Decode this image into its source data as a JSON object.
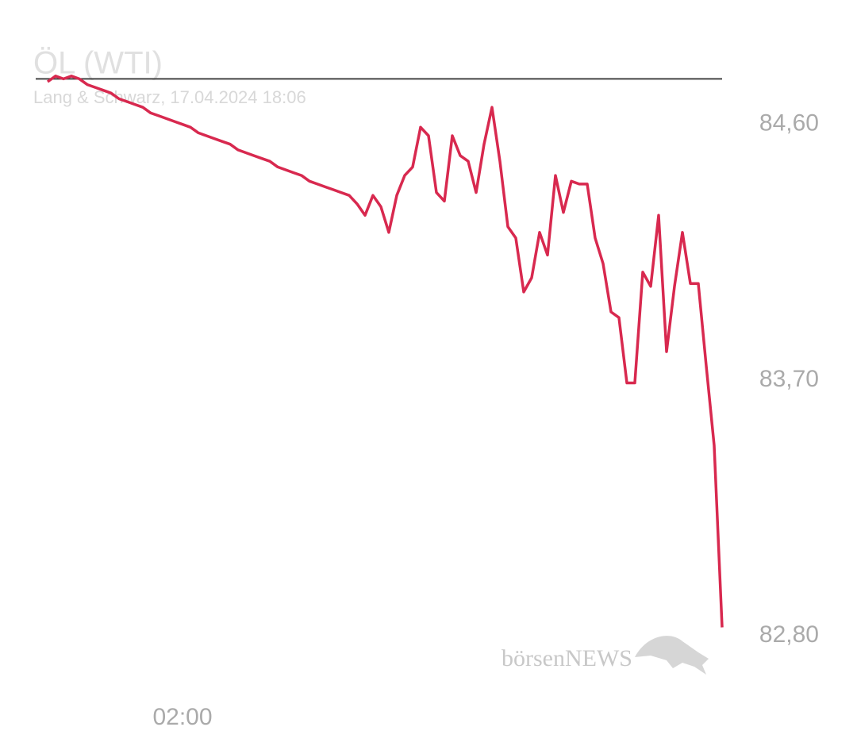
{
  "chart_data": {
    "type": "line",
    "title": "ÖL (WTI)",
    "subtitle": "Lang & Schwarz, 17.04.2024 18:06",
    "watermark": "börsenNEWS",
    "categories": [
      null,
      null,
      null,
      null,
      null,
      null,
      null,
      null,
      null,
      null,
      null,
      null,
      null,
      null,
      null,
      null,
      null,
      "02:00",
      null,
      null,
      null,
      null,
      null,
      null,
      null,
      null,
      null,
      null,
      null,
      null,
      null,
      null,
      null,
      null,
      null,
      null,
      null,
      null,
      null,
      null,
      null,
      null,
      null,
      null,
      null,
      null,
      null,
      null,
      null,
      null,
      null,
      null,
      null,
      null,
      null,
      null,
      null,
      null,
      null,
      null,
      null,
      null,
      null,
      null,
      null,
      null,
      null,
      null,
      null,
      null,
      null,
      null,
      null,
      null,
      null,
      null,
      null,
      null,
      null,
      null,
      null,
      null,
      null,
      null,
      null,
      null
    ],
    "values": [
      84.75,
      84.77,
      84.76,
      84.77,
      84.76,
      84.74,
      84.73,
      84.72,
      84.71,
      84.69,
      84.68,
      84.67,
      84.66,
      84.64,
      84.63,
      84.62,
      84.61,
      84.6,
      84.59,
      84.57,
      84.56,
      84.55,
      84.54,
      84.53,
      84.51,
      84.5,
      84.49,
      84.48,
      84.47,
      84.45,
      84.44,
      84.43,
      84.42,
      84.4,
      84.39,
      84.38,
      84.37,
      84.36,
      84.35,
      84.32,
      84.28,
      84.35,
      84.31,
      84.22,
      84.35,
      84.42,
      84.45,
      84.59,
      84.56,
      84.36,
      84.33,
      84.56,
      84.49,
      84.47,
      84.36,
      84.53,
      84.66,
      84.47,
      84.24,
      84.2,
      84.01,
      84.06,
      84.22,
      84.14,
      84.42,
      84.29,
      84.4,
      84.39,
      84.39,
      84.2,
      84.11,
      83.94,
      83.92,
      83.69,
      83.69,
      84.08,
      84.03,
      84.28,
      83.8,
      84.03,
      84.22,
      84.04,
      84.04,
      83.75,
      83.47,
      82.83
    ],
    "color": "#d8294f",
    "reference_line": 84.76,
    "reference_color": "#444444",
    "ylim": [
      82.58,
      84.87
    ],
    "yticks": [
      {
        "value": 82.8,
        "label": "82,80"
      },
      {
        "value": 83.7,
        "label": "83,70"
      },
      {
        "value": 84.6,
        "label": "84,60"
      }
    ]
  }
}
